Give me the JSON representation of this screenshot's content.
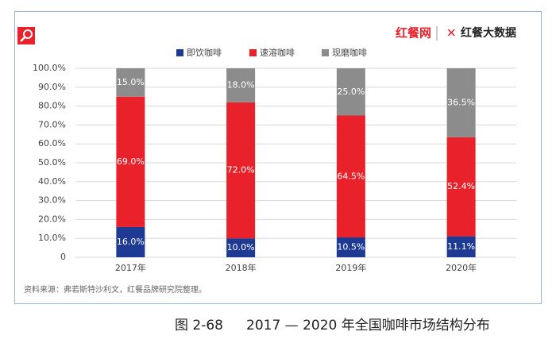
{
  "chart_data": {
    "type": "stacked_bar",
    "figure_number": "图 2-68",
    "title": "2017 — 2020 年全国咖啡市场结构分布",
    "source": "资料来源：弗若斯特沙利文，红餐品牌研究院整理。",
    "categories": [
      "2017年",
      "2018年",
      "2019年",
      "2020年"
    ],
    "series": [
      {
        "name": "即饮咖啡",
        "color": "#1f3a93",
        "values": [
          16.0,
          10.0,
          10.5,
          11.1
        ],
        "value_labels": [
          "16.0%",
          "10.0%",
          "10.5%",
          "11.1%"
        ]
      },
      {
        "name": "速溶咖啡",
        "color": "#e8212a",
        "values": [
          69.0,
          72.0,
          64.5,
          52.4
        ],
        "value_labels": [
          "69.0%",
          "72.0%",
          "64.5%",
          "52.4%"
        ]
      },
      {
        "name": "现磨咖啡",
        "color": "#8c8c8c",
        "values": [
          15.0,
          18.0,
          25.0,
          36.5
        ],
        "value_labels": [
          "15.0%",
          "18.0%",
          "25.0%",
          "36.5%"
        ]
      }
    ],
    "ylim": [
      0,
      100
    ],
    "yticks": [
      0,
      {
        "value": 10,
        "label": "10.0%"
      },
      {
        "value": 20,
        "label": "20.0%"
      },
      {
        "value": 30,
        "label": "30.0%"
      },
      {
        "value": 40,
        "label": "40.0%"
      },
      {
        "value": 50,
        "label": "50.0%"
      },
      {
        "value": 60,
        "label": "60.0%"
      },
      {
        "value": 70,
        "label": "70.0%"
      },
      {
        "value": 80,
        "label": "80.0%"
      },
      {
        "value": 90,
        "label": "90.0%"
      },
      {
        "value": 100,
        "label": "100.0%"
      }
    ],
    "grid": true
  },
  "logo": {
    "brand": "红餐网",
    "product": "红餐大数据"
  }
}
